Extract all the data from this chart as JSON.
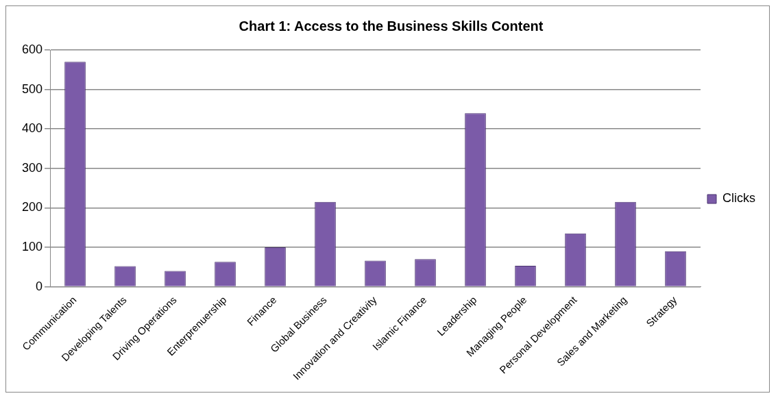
{
  "chart_data": {
    "type": "bar",
    "title": "Chart 1: Access to the Business Skills Content",
    "categories": [
      "Communication",
      "Developing Talents",
      "Driving Operations",
      "Enterprenuership",
      "Finance",
      "Global Business",
      "Innovation and Creativity",
      "Islamic Finance",
      "Leadership",
      "Managing People",
      "Personal Development",
      "Sales and Marketing",
      "Strategy"
    ],
    "series": [
      {
        "name": "Clicks",
        "color": "#7b5ba8",
        "values": [
          570,
          52,
          40,
          63,
          100,
          215,
          66,
          70,
          440,
          53,
          135,
          215,
          90
        ]
      }
    ],
    "ylim": [
      0,
      600
    ],
    "yticks": [
      0,
      100,
      200,
      300,
      400,
      500,
      600
    ],
    "grid": "y",
    "legend": "right"
  }
}
